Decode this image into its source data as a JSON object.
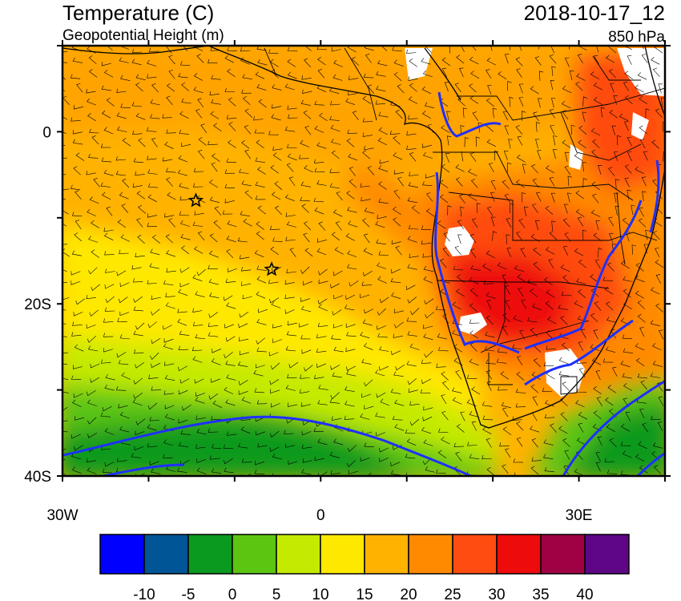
{
  "header": {
    "title": "Temperature (C)",
    "subtitle": "Geopotential Height (m)",
    "datetime": "2018-10-17_12",
    "level": "850 hPa"
  },
  "map": {
    "projection": "lat-lon",
    "lon_range": [
      -30,
      40
    ],
    "lat_range": [
      -40,
      10
    ],
    "lat_ticks": [
      {
        "value": 0,
        "label": "0"
      },
      {
        "value": -20,
        "label": "20S"
      },
      {
        "value": -40,
        "label": "40S"
      }
    ],
    "lon_ticks": [
      {
        "value": -30,
        "label": "30W"
      },
      {
        "value": 0,
        "label": "0"
      },
      {
        "value": 30,
        "label": "30E"
      }
    ],
    "star_markers": [
      {
        "lon": -14.5,
        "lat": -8
      },
      {
        "lon": -5.7,
        "lat": -16
      }
    ],
    "contour_color": "#1f2fff",
    "overlay": "wind barbs"
  },
  "colorbar": {
    "levels": [
      "-10",
      "-5",
      "0",
      "5",
      "10",
      "15",
      "20",
      "25",
      "30",
      "35",
      "40"
    ],
    "colors": [
      "#0000ff",
      "#005596",
      "#0a9a1f",
      "#5cc512",
      "#c5ea02",
      "#ffe800",
      "#ffb200",
      "#ff8a00",
      "#ff4c10",
      "#ee0b0b",
      "#a00044",
      "#5e0686"
    ]
  }
}
